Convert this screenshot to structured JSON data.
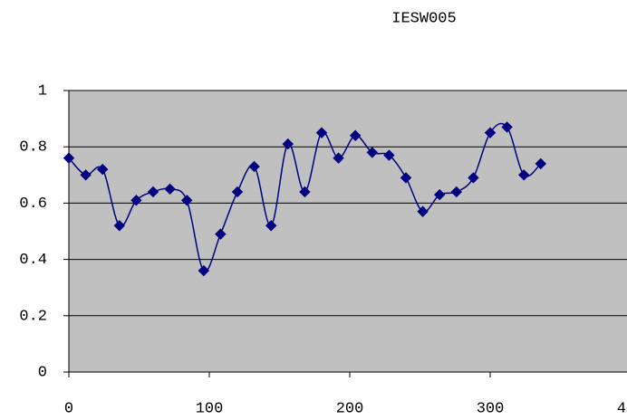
{
  "chart_data": {
    "type": "line",
    "title": "IESW005",
    "x": [
      0,
      12,
      24,
      36,
      48,
      60,
      72,
      84,
      96,
      108,
      120,
      132,
      144,
      156,
      168,
      180,
      192,
      204,
      216,
      228,
      240,
      252,
      264,
      276,
      288,
      300,
      312,
      324,
      336
    ],
    "series": [
      {
        "name": "IESW005",
        "color": "#000080",
        "values": [
          0.76,
          0.7,
          0.72,
          0.52,
          0.61,
          0.64,
          0.65,
          0.61,
          0.36,
          0.49,
          0.64,
          0.73,
          0.52,
          0.81,
          0.64,
          0.85,
          0.76,
          0.84,
          0.78,
          0.77,
          0.69,
          0.57,
          0.63,
          0.64,
          0.69,
          0.85,
          0.87,
          0.7,
          0.74
        ]
      }
    ],
    "xlim": [
      0,
      400
    ],
    "xticks": [
      0,
      100,
      200,
      300,
      400
    ],
    "ylim": [
      0,
      1
    ],
    "yticks": [
      0,
      0.2,
      0.4,
      0.6,
      0.8,
      1
    ],
    "grid": true,
    "plot_background": "#c0c0c0"
  }
}
